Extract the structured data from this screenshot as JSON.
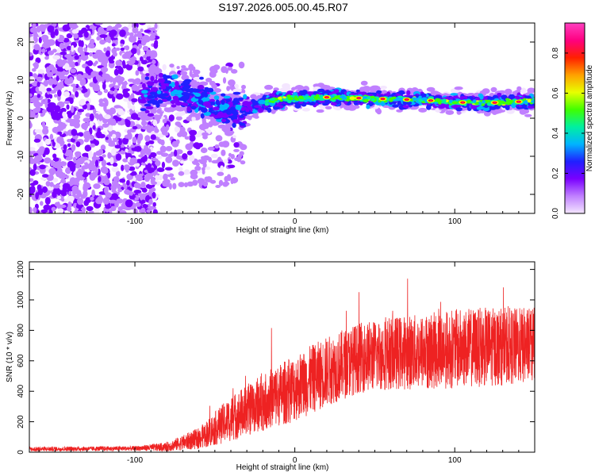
{
  "title": "S197.2026.005.00.45.R07",
  "chart_data": [
    {
      "type": "heatmap",
      "xlabel": "Height of straight line (km)",
      "ylabel": "Frequency (Hz)",
      "xlim": [
        -166,
        150
      ],
      "ylim": [
        -25,
        25
      ],
      "xticks": [
        -100,
        0,
        100
      ],
      "yticks": [
        -20,
        -10,
        0,
        10,
        20
      ],
      "colorbar": {
        "label": "Normalized spectral amplitude",
        "range": [
          0,
          0.95
        ],
        "ticks": [
          0.0,
          0.2,
          0.4,
          0.6,
          0.8
        ],
        "colors": [
          "#f4e6ff",
          "#c080ff",
          "#7a00ff",
          "#2020ff",
          "#00b4ff",
          "#00f0a0",
          "#40ff00",
          "#e8ff00",
          "#ffa000",
          "#ff2000",
          "#ff0080",
          "#ff40c0"
        ]
      },
      "ridge": {
        "points": [
          [
            -95,
            6
          ],
          [
            -80,
            7
          ],
          [
            -65,
            6
          ],
          [
            -45,
            2
          ],
          [
            -30,
            2
          ],
          [
            -20,
            4
          ],
          [
            -10,
            5
          ],
          [
            0,
            5
          ],
          [
            20,
            5.5
          ],
          [
            40,
            5.3
          ],
          [
            60,
            5
          ],
          [
            80,
            4.8
          ],
          [
            100,
            4.2
          ],
          [
            120,
            4
          ],
          [
            150,
            4.5
          ]
        ],
        "peak_heights_km": [
          20,
          40,
          55,
          70,
          85,
          105,
          125,
          140
        ]
      }
    },
    {
      "type": "line",
      "xlabel": "Height of straight line (km)",
      "ylabel": "SNR (10 * v/v)",
      "xlim": [
        -166,
        150
      ],
      "ylim": [
        0,
        1250
      ],
      "xticks": [
        -100,
        0,
        100
      ],
      "yticks": [
        0,
        200,
        400,
        600,
        800,
        1000,
        1200
      ],
      "color": "#ee2222",
      "trend": {
        "x": [
          -166,
          -100,
          -80,
          -60,
          -40,
          -20,
          0,
          20,
          40,
          60,
          80,
          100,
          120,
          150
        ],
        "mean": [
          20,
          25,
          35,
          90,
          220,
          330,
          420,
          530,
          620,
          650,
          660,
          680,
          690,
          700
        ],
        "spread": [
          15,
          15,
          30,
          70,
          150,
          190,
          220,
          230,
          230,
          240,
          250,
          260,
          260,
          250
        ]
      }
    }
  ]
}
